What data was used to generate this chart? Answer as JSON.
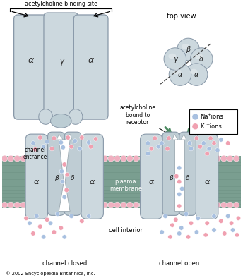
{
  "bg_color": "#ffffff",
  "subunit_color_light": "#ccd8de",
  "subunit_color_mid": "#aabbc4",
  "subunit_edge": "#8898a8",
  "membrane_teal": "#7a9e90",
  "membrane_stripe": "#6a8e80",
  "lipid_color": "#f0b0c0",
  "na_ion_color": "#a8c0e0",
  "k_ion_color": "#f0a0b0",
  "arrow_color": "#4a8a60",
  "text_color": "#000000",
  "copyright": "© 2002 Encyclopædia Britannica, Inc.",
  "alpha": "α",
  "beta": "β",
  "gamma": "γ",
  "delta": "δ",
  "binding_site_label": "acetylcholine binding site",
  "top_view_label": "top view",
  "channel_entrance_label": "channel\nentrance",
  "acetylcholine_bound_label": "acetylcholine\nbound to\nreceptor",
  "plasma_membrane_label": "plasma\nmembrane",
  "cell_interior_label": "cell interior",
  "channel_closed_label": "channel closed",
  "channel_open_label": "channel open",
  "na_label": "Na",
  "k_label": "K",
  "ions_label": "ions"
}
